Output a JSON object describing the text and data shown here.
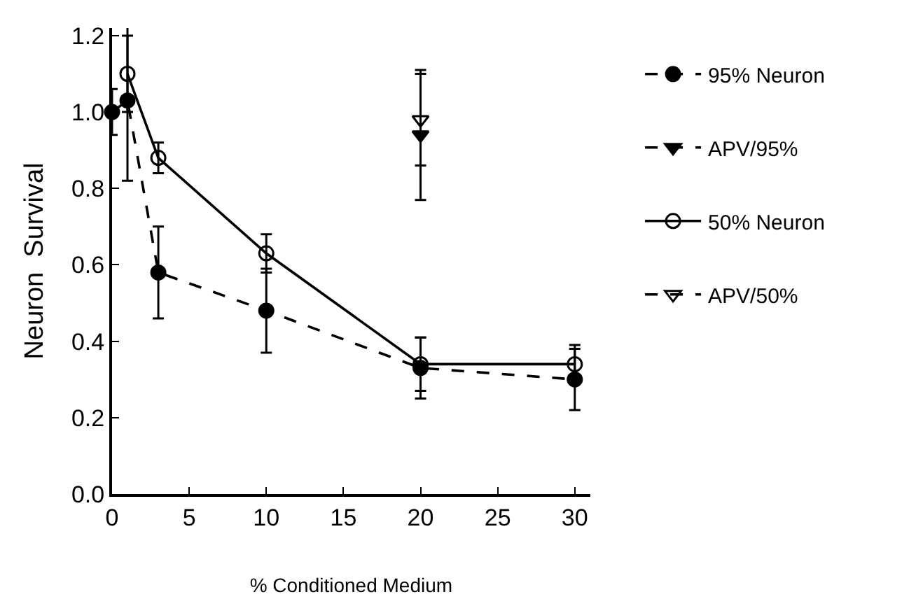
{
  "chart_data": {
    "type": "line",
    "xlabel": "% Conditioned Medium",
    "ylabel": "Neuron  Survival",
    "xlim": [
      0,
      31
    ],
    "xticks": [
      0,
      5,
      10,
      15,
      20,
      25,
      30
    ],
    "ylim": [
      0,
      1.22
    ],
    "yticks": [
      {
        "value": 0,
        "label": "0.0"
      },
      0.2,
      0.4,
      0.6,
      0.8,
      {
        "value": 1,
        "label": "1.0"
      },
      1.2
    ],
    "legend": "right",
    "series": [
      {
        "name": "95% Neuron",
        "color": "#000000",
        "marker": "circle",
        "line_style": "dashed",
        "x": [
          0,
          1,
          3,
          10,
          20,
          30
        ],
        "values": [
          1.0,
          1.03,
          0.58,
          0.48,
          0.33,
          0.3
        ],
        "errors": [
          0.06,
          0.21,
          0.12,
          0.11,
          0.08,
          0.08
        ]
      },
      {
        "name": "APV/95%",
        "color": "#000000",
        "marker": "triangle",
        "line_style": "dashed",
        "x": [
          20
        ],
        "values": [
          0.94
        ],
        "errors": [
          0.17
        ]
      },
      {
        "name": "50% Neuron",
        "color": "#000000",
        "marker": "circle-open",
        "line_style": "solid",
        "x": [
          1,
          3,
          10,
          20,
          30
        ],
        "values": [
          1.1,
          0.88,
          0.63,
          0.34,
          0.34
        ],
        "errors": [
          0.1,
          0.04,
          0.05,
          0.07,
          0.05
        ]
      },
      {
        "name": "APV/50%",
        "color": "#000000",
        "marker": "triangle-open",
        "line_style": "dashed",
        "x": [
          20
        ],
        "values": [
          0.98
        ],
        "errors": [
          0.12
        ]
      }
    ]
  }
}
